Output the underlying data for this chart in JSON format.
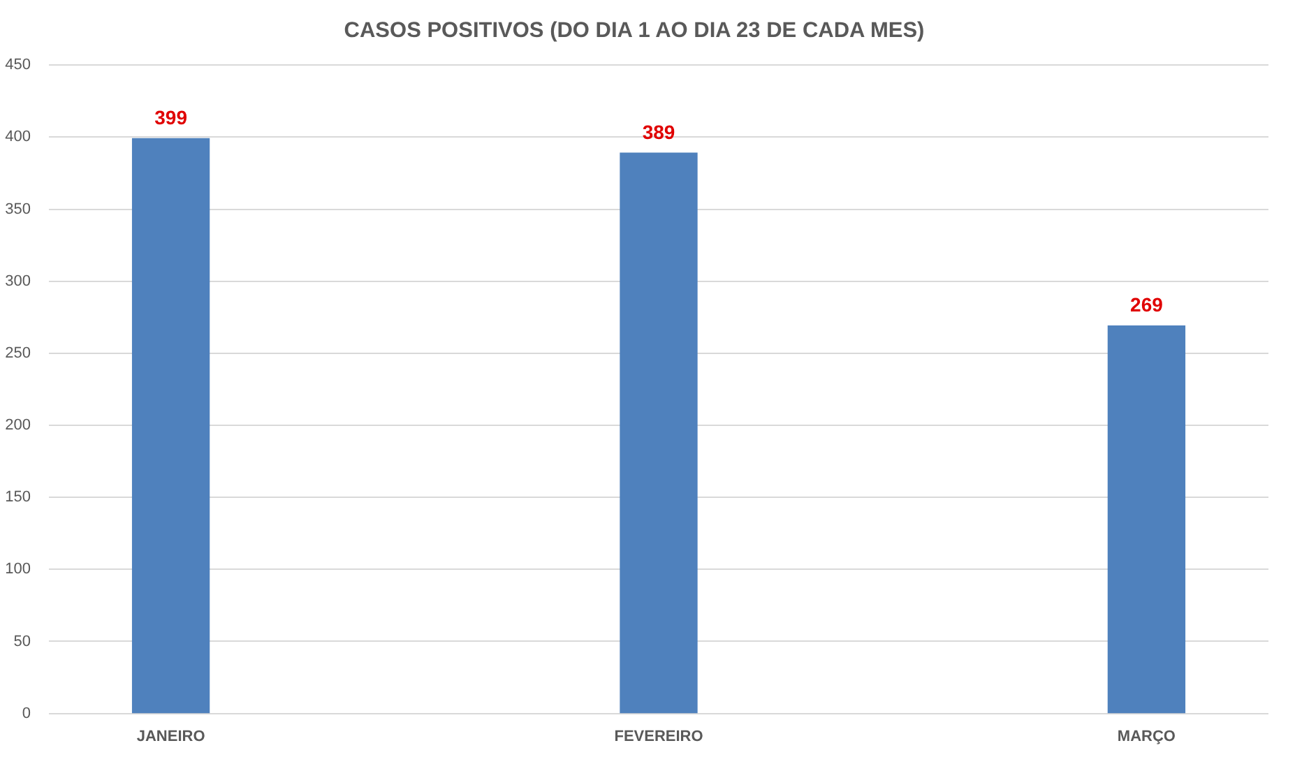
{
  "chart_data": {
    "type": "bar",
    "title": "CASOS POSITIVOS (DO DIA 1 AO DIA 23 DE CADA MES)",
    "categories": [
      "JANEIRO",
      "FEVEREIRO",
      "MARÇO"
    ],
    "values": [
      399,
      389,
      269
    ],
    "color": "#4f81bd",
    "ylim": [
      0,
      450
    ],
    "yticks": [
      0,
      50,
      100,
      150,
      200,
      250,
      300,
      350,
      400,
      450
    ],
    "grid": "y",
    "data_labels": true
  }
}
